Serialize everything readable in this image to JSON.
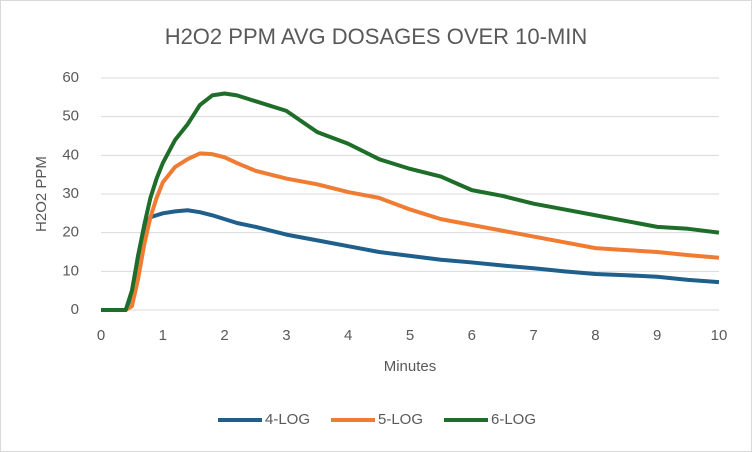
{
  "chart_data": {
    "type": "line",
    "title": "H2O2 PPM AVG DOSAGES OVER 10-MIN",
    "x_label": "Minutes",
    "y_label": "H2O2 PPM",
    "x": [
      0,
      0.2,
      0.4,
      0.5,
      0.6,
      0.7,
      0.8,
      0.9,
      1,
      1.2,
      1.4,
      1.6,
      1.8,
      2,
      2.2,
      2.5,
      3,
      3.5,
      4,
      4.5,
      5,
      5.5,
      6,
      6.5,
      7,
      7.5,
      8,
      8.5,
      9,
      9.5,
      10
    ],
    "series": [
      {
        "name": "4-LOG",
        "color": "#1f5f8b",
        "values": [
          0,
          0,
          0,
          4,
          14,
          21,
          24,
          24.5,
          25,
          25.5,
          25.8,
          25.3,
          24.5,
          23.5,
          22.5,
          21.5,
          19.5,
          18,
          16.5,
          15,
          14,
          13,
          12.3,
          11.5,
          10.8,
          10,
          9.3,
          9,
          8.6,
          7.8,
          7.2
        ]
      },
      {
        "name": "5-LOG",
        "color": "#f07b32",
        "values": [
          0,
          0,
          0,
          1,
          8,
          17,
          24,
          29,
          33,
          37,
          39,
          40.5,
          40.3,
          39.5,
          38,
          36,
          34,
          32.5,
          30.5,
          29,
          26,
          23.5,
          22,
          20.5,
          19,
          17.5,
          16,
          15.5,
          15,
          14.2,
          13.5
        ]
      },
      {
        "name": "6-LOG",
        "color": "#1e6e2a",
        "values": [
          0,
          0,
          0,
          5,
          14,
          22,
          29,
          34,
          38,
          44,
          48,
          53,
          55.5,
          56,
          55.5,
          54,
          51.5,
          46,
          43,
          39,
          36.5,
          34.5,
          31,
          29.5,
          27.5,
          26,
          24.5,
          23,
          21.5,
          21,
          20
        ]
      }
    ],
    "xlim": [
      0,
      10
    ],
    "xticks": [
      0,
      1,
      2,
      3,
      4,
      5,
      6,
      7,
      8,
      9,
      10
    ],
    "ylim": [
      0,
      60
    ],
    "yticks": [
      0,
      10,
      20,
      30,
      40,
      50,
      60
    ],
    "grid": true,
    "legend": "bottom"
  }
}
